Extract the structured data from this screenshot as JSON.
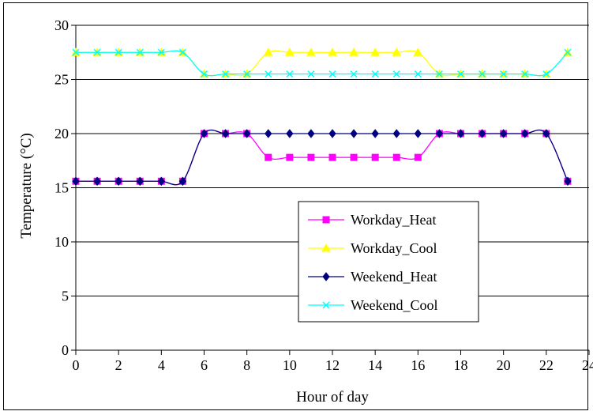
{
  "chart_data": {
    "type": "line",
    "title": "",
    "xlabel": "Hour of day",
    "ylabel": "Temperature (°C)",
    "xlim": [
      0,
      24
    ],
    "ylim": [
      0,
      30
    ],
    "x_ticks": [
      0,
      2,
      4,
      6,
      8,
      10,
      12,
      14,
      16,
      18,
      20,
      22,
      24
    ],
    "y_ticks": [
      0,
      5,
      10,
      15,
      20,
      25,
      30
    ],
    "grid": "horizontal",
    "legend_position": "center-right",
    "x": [
      0,
      1,
      2,
      3,
      4,
      5,
      6,
      7,
      8,
      9,
      10,
      11,
      12,
      13,
      14,
      15,
      16,
      17,
      18,
      19,
      20,
      21,
      22,
      23
    ],
    "series": [
      {
        "name": "Workday_Heat",
        "color": "#FF00FF",
        "marker": "square",
        "values": [
          15.6,
          15.6,
          15.6,
          15.6,
          15.6,
          15.6,
          20.0,
          20.0,
          20.0,
          17.8,
          17.8,
          17.8,
          17.8,
          17.8,
          17.8,
          17.8,
          17.8,
          20.0,
          20.0,
          20.0,
          20.0,
          20.0,
          20.0,
          15.6
        ]
      },
      {
        "name": "Workday_Cool",
        "color": "#FFFF00",
        "marker": "triangle",
        "values": [
          27.5,
          27.5,
          27.5,
          27.5,
          27.5,
          27.5,
          25.5,
          25.5,
          25.5,
          27.5,
          27.5,
          27.5,
          27.5,
          27.5,
          27.5,
          27.5,
          27.5,
          25.5,
          25.5,
          25.5,
          25.5,
          25.5,
          25.5,
          27.5
        ]
      },
      {
        "name": "Weekend_Heat",
        "color": "#000080",
        "marker": "diamond",
        "values": [
          15.6,
          15.6,
          15.6,
          15.6,
          15.6,
          15.6,
          20.0,
          20.0,
          20.0,
          20.0,
          20.0,
          20.0,
          20.0,
          20.0,
          20.0,
          20.0,
          20.0,
          20.0,
          20.0,
          20.0,
          20.0,
          20.0,
          20.0,
          15.6
        ]
      },
      {
        "name": "Weekend_Cool",
        "color": "#00FFFF",
        "marker": "x",
        "values": [
          27.5,
          27.5,
          27.5,
          27.5,
          27.5,
          27.5,
          25.5,
          25.5,
          25.5,
          25.5,
          25.5,
          25.5,
          25.5,
          25.5,
          25.5,
          25.5,
          25.5,
          25.5,
          25.5,
          25.5,
          25.5,
          25.5,
          25.5,
          27.5
        ]
      }
    ]
  }
}
